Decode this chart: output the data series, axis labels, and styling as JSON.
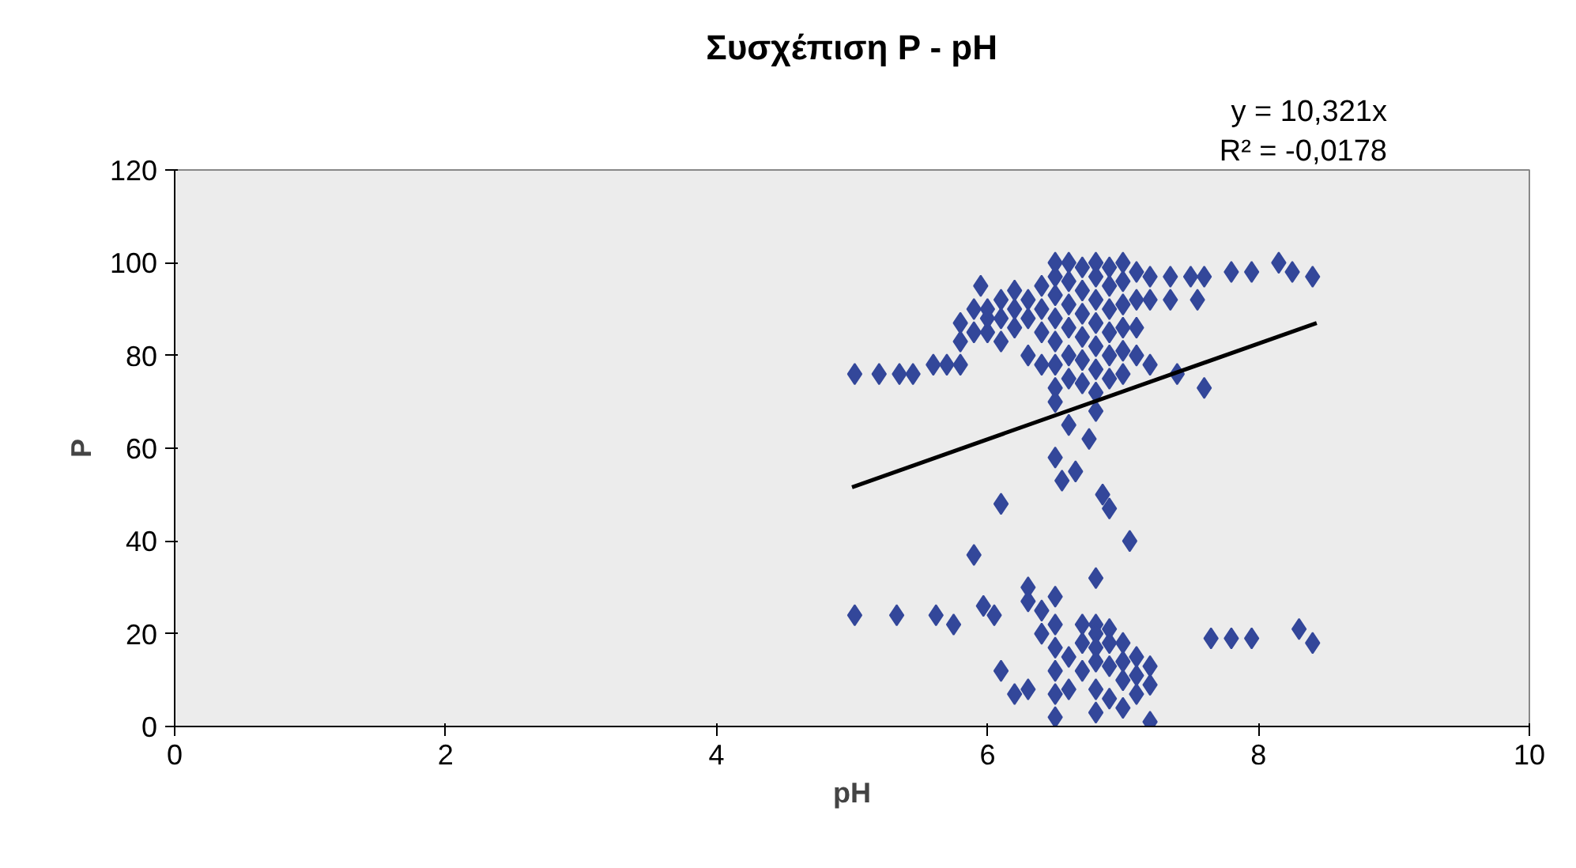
{
  "chart_data": {
    "type": "scatter",
    "title": "Συσχέπιση P - pH",
    "xlabel": "pH",
    "ylabel": "P",
    "annotations": [
      "y = 10,321x",
      "R² = -0,0178"
    ],
    "xlim": [
      0,
      10
    ],
    "xticks": [
      0,
      2,
      4,
      6,
      8,
      10
    ],
    "ylim": [
      0,
      120
    ],
    "yticks": [
      0,
      20,
      40,
      60,
      80,
      100,
      120
    ],
    "grid": false,
    "series": [
      {
        "color": "#33479a",
        "marker": "diamond",
        "x": [
          5.02,
          5.2,
          5.35,
          5.45,
          5.6,
          5.7,
          5.8,
          5.8,
          5.8,
          5.9,
          5.9,
          5.95,
          6.0,
          6.0,
          6.0,
          6.1,
          6.1,
          6.1,
          6.2,
          6.2,
          6.2,
          6.3,
          6.3,
          6.3,
          6.4,
          6.4,
          6.4,
          6.4,
          6.5,
          6.5,
          6.5,
          6.5,
          6.5,
          6.5,
          6.5,
          6.5,
          6.6,
          6.6,
          6.6,
          6.6,
          6.6,
          6.6,
          6.7,
          6.7,
          6.7,
          6.7,
          6.7,
          6.7,
          6.8,
          6.8,
          6.8,
          6.8,
          6.8,
          6.8,
          6.8,
          6.8,
          6.9,
          6.9,
          6.9,
          6.9,
          6.9,
          6.9,
          7.0,
          7.0,
          7.0,
          7.0,
          7.0,
          7.0,
          7.1,
          7.1,
          7.1,
          7.1,
          7.2,
          7.35,
          7.5,
          7.6,
          7.2,
          7.35,
          7.55,
          7.2,
          7.4,
          7.6,
          7.8,
          7.95,
          8.15,
          8.25,
          8.4,
          6.6,
          6.5,
          6.55,
          6.65,
          6.75,
          6.85,
          6.9,
          6.8,
          7.05,
          5.9,
          6.1,
          5.02,
          5.33,
          5.62,
          5.75,
          5.97,
          6.05,
          6.1,
          6.2,
          6.3,
          6.3,
          6.3,
          6.4,
          6.4,
          6.5,
          6.5,
          6.5,
          6.5,
          6.5,
          6.5,
          6.6,
          6.6,
          6.7,
          6.7,
          6.7,
          6.8,
          6.8,
          6.8,
          6.8,
          6.8,
          6.8,
          6.9,
          6.9,
          6.9,
          6.9,
          7.0,
          7.0,
          7.0,
          7.0,
          7.1,
          7.1,
          7.1,
          7.2,
          7.2,
          7.2,
          7.65,
          7.8,
          7.95,
          8.3,
          8.4
        ],
        "values": [
          76,
          76,
          76,
          76,
          78,
          78,
          78,
          87,
          83,
          90,
          85,
          95,
          85,
          88,
          90,
          92,
          88,
          83,
          90,
          94,
          86,
          92,
          88,
          80,
          95,
          90,
          85,
          78,
          100,
          97,
          93,
          88,
          83,
          78,
          73,
          70,
          100,
          96,
          91,
          86,
          80,
          75,
          99,
          94,
          89,
          84,
          79,
          74,
          100,
          97,
          92,
          87,
          82,
          77,
          72,
          68,
          99,
          95,
          90,
          85,
          80,
          75,
          100,
          96,
          91,
          86,
          81,
          76,
          98,
          92,
          86,
          80,
          97,
          97,
          97,
          97,
          92,
          92,
          92,
          78,
          76,
          73,
          98,
          98,
          100,
          98,
          97,
          65,
          58,
          53,
          55,
          62,
          50,
          47,
          32,
          40,
          37,
          48,
          24,
          24,
          24,
          22,
          26,
          24,
          12,
          7,
          8,
          30,
          27,
          25,
          20,
          28,
          22,
          17,
          12,
          7,
          2,
          15,
          8,
          22,
          18,
          12,
          22,
          20,
          17,
          14,
          8,
          3,
          21,
          18,
          13,
          6,
          18,
          14,
          10,
          4,
          15,
          11,
          7,
          13,
          9,
          1,
          19,
          19,
          19,
          21,
          18
        ]
      },
      {
        "type": "line",
        "color": "#000000",
        "x": [
          5.0,
          8.43
        ],
        "values": [
          51.6,
          87.0
        ]
      }
    ]
  }
}
